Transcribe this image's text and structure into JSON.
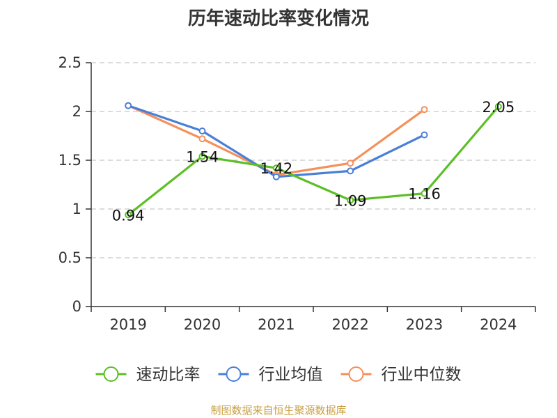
{
  "title": "历年速动比率变化情况",
  "source": "制图数据来自恒生聚源数据库",
  "chart_data": {
    "type": "line",
    "categories": [
      "2019",
      "2020",
      "2021",
      "2022",
      "2023",
      "2024"
    ],
    "ylim": [
      0,
      2.5
    ],
    "yticks": [
      0,
      0.5,
      1,
      1.5,
      2,
      2.5
    ],
    "ytick_labels": [
      "0",
      "0.5",
      "1",
      "1.5",
      "2",
      "2.5"
    ],
    "grid": true,
    "legend_position": "bottom",
    "series": [
      {
        "name": "速动比率",
        "color": "#5bbf25",
        "values": [
          0.94,
          1.54,
          1.42,
          1.09,
          1.16,
          2.05
        ],
        "labels": [
          "0.94",
          "1.54",
          "1.42",
          "1.09",
          "1.16",
          "2.05"
        ]
      },
      {
        "name": "行业均值",
        "color": "#4a7fd8",
        "values": [
          2.06,
          1.8,
          1.33,
          1.39,
          1.76,
          null
        ]
      },
      {
        "name": "行业中位数",
        "color": "#f5905a",
        "values": [
          2.06,
          1.72,
          1.35,
          1.47,
          2.02,
          null
        ]
      }
    ]
  }
}
